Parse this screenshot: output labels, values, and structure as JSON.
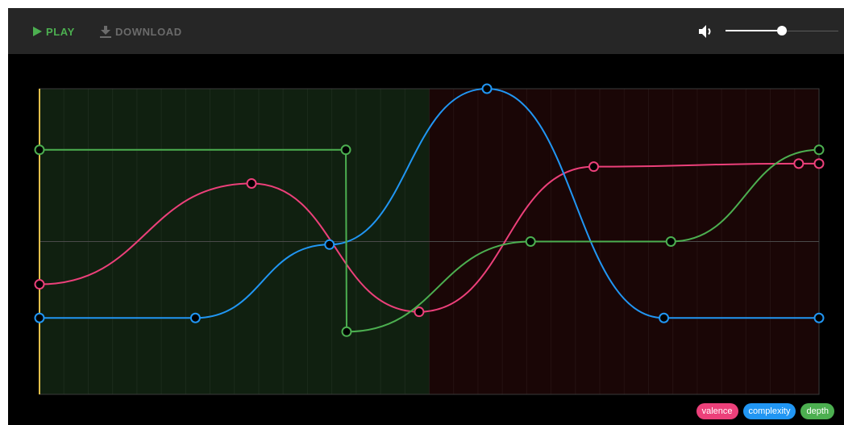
{
  "toolbar": {
    "play_label": "PLAY",
    "download_label": "DOWNLOAD",
    "volume_level": 0.5
  },
  "timeline": {
    "sections": [
      {
        "start": 0,
        "end": 0.5,
        "color": "#102010"
      },
      {
        "start": 0.5,
        "end": 1.0,
        "color": "#1a0606"
      }
    ],
    "playhead_color": "#e3c04a"
  },
  "curves": [
    {
      "id": "valence",
      "color": "#ec407a",
      "points": [
        [
          0,
          0.36
        ],
        [
          0.272,
          0.69
        ],
        [
          0.487,
          0.27
        ],
        [
          0.711,
          0.745
        ],
        [
          0.974,
          0.755
        ],
        [
          1.0,
          0.755
        ]
      ]
    },
    {
      "id": "complexity",
      "color": "#2196f3",
      "points": [
        [
          0,
          0.25
        ],
        [
          0.2,
          0.25
        ],
        [
          0.372,
          0.49
        ],
        [
          0.574,
          1.0
        ],
        [
          0.801,
          0.25
        ],
        [
          1.0,
          0.25
        ]
      ]
    },
    {
      "id": "depth",
      "color": "#4caf50",
      "points": [
        [
          0,
          0.8
        ],
        [
          0.393,
          0.8
        ],
        [
          0.394,
          0.205
        ],
        [
          0.63,
          0.5
        ],
        [
          0.81,
          0.5
        ],
        [
          1.0,
          0.8
        ]
      ]
    }
  ],
  "legend": [
    {
      "label": "valence",
      "color": "#ec407a"
    },
    {
      "label": "complexity",
      "color": "#2196f3"
    },
    {
      "label": "depth",
      "color": "#4caf50"
    }
  ]
}
